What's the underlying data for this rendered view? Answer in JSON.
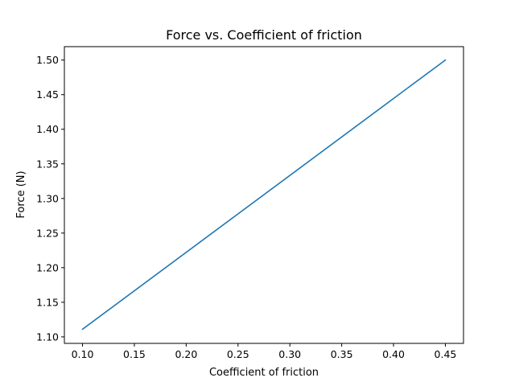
{
  "chart_data": {
    "type": "line",
    "title": "Force vs. Coefficient of friction",
    "xlabel": "Coefficient of friction",
    "ylabel": "Force (N)",
    "xlim": [
      0.0825,
      0.4675
    ],
    "ylim": [
      1.0906,
      1.5194
    ],
    "x_ticks": [
      "0.10",
      "0.15",
      "0.20",
      "0.25",
      "0.30",
      "0.35",
      "0.40",
      "0.45"
    ],
    "y_ticks": [
      "1.10",
      "1.15",
      "1.20",
      "1.25",
      "1.30",
      "1.35",
      "1.40",
      "1.45",
      "1.50"
    ],
    "grid": false,
    "series": [
      {
        "color": "#1f77b4",
        "points": [
          [
            0.1,
            1.111
          ],
          [
            0.45,
            1.5
          ]
        ]
      }
    ]
  }
}
